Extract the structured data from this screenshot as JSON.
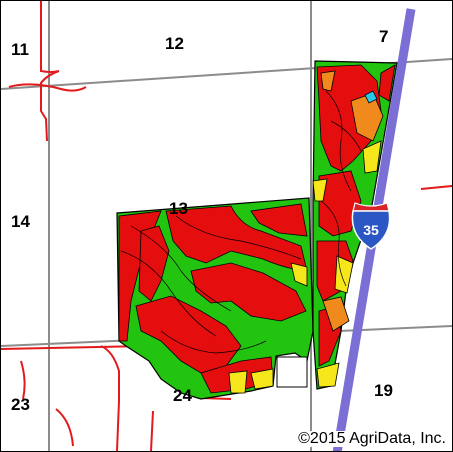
{
  "map": {
    "sections": [
      {
        "id": "s11",
        "label": "11"
      },
      {
        "id": "s12",
        "label": "12"
      },
      {
        "id": "s7",
        "label": "7"
      },
      {
        "id": "s14",
        "label": "14"
      },
      {
        "id": "s13",
        "label": "13"
      },
      {
        "id": "s23",
        "label": "23"
      },
      {
        "id": "s24",
        "label": "24"
      },
      {
        "id": "s19",
        "label": "19"
      }
    ],
    "highway_shield": {
      "label": "35",
      "color": "#2a57c4",
      "top_color": "#d9232a"
    },
    "interstate_color": "#7b6fd6",
    "road_color": "#e31a1c",
    "section_line_color": "#8c8c8c",
    "soil_colors": {
      "green": "#22c40f",
      "red": "#e40e0e",
      "orange": "#f08a1c",
      "yellow": "#f5e71c",
      "cyan": "#27c8e8"
    },
    "copyright": "©2015 AgriData, Inc."
  }
}
